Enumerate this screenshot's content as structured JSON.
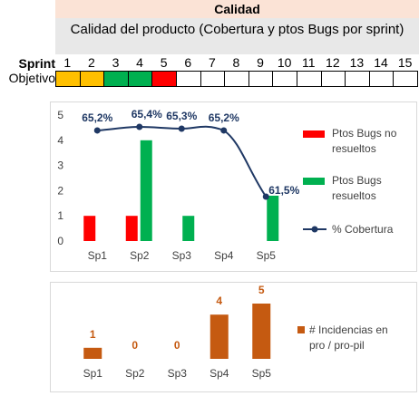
{
  "header": {
    "title": "Calidad",
    "subtitle": "Calidad del producto (Cobertura y ptos Bugs por sprint)"
  },
  "sprint_row": {
    "label": "Sprint",
    "numbers": [
      "1",
      "2",
      "3",
      "4",
      "5",
      "6",
      "7",
      "8",
      "9",
      "10",
      "11",
      "12",
      "13",
      "14",
      "15"
    ]
  },
  "objetivo_row": {
    "label": "Objetivo",
    "cell_colors": [
      "#ffc000",
      "#ffc000",
      "#00b050",
      "#00b050",
      "#ff0000",
      "#ffffff",
      "#ffffff",
      "#ffffff",
      "#ffffff",
      "#ffffff",
      "#ffffff",
      "#ffffff",
      "#ffffff",
      "#ffffff",
      "#ffffff"
    ]
  },
  "chart_data": [
    {
      "type": "bar",
      "categories": [
        "Sp1",
        "Sp2",
        "Sp3",
        "Sp4",
        "Sp5"
      ],
      "ylim": [
        0,
        5
      ],
      "yticks": [
        "0",
        "1",
        "2",
        "3",
        "4",
        "5"
      ],
      "series": [
        {
          "name": "Ptos Bugs no resueltos",
          "type": "bar",
          "color": "#ff0000",
          "values": [
            1,
            1,
            0,
            0,
            0
          ]
        },
        {
          "name": "Ptos Bugs resueltos",
          "type": "bar",
          "color": "#00b050",
          "values": [
            0,
            4,
            1,
            0,
            1.8
          ]
        },
        {
          "name": "% Cobertura",
          "type": "line",
          "color": "#1f3864",
          "values": [
            65.2,
            65.4,
            65.3,
            65.2,
            61.5
          ],
          "labels": [
            "65,2%",
            "65,4%",
            "65,3%",
            "65,2%",
            "61,5%"
          ]
        }
      ],
      "legend_position": "right",
      "grid": false
    },
    {
      "type": "bar",
      "categories": [
        "Sp1",
        "Sp2",
        "Sp3",
        "Sp4",
        "Sp5"
      ],
      "series": [
        {
          "name": "# Incidencias en pro / pro-pil",
          "color": "#c55a11",
          "values": [
            1,
            0,
            0,
            4,
            5
          ],
          "labels": [
            "1",
            "0",
            "0",
            "4",
            "5"
          ]
        }
      ],
      "legend_position": "right",
      "grid": false
    }
  ]
}
